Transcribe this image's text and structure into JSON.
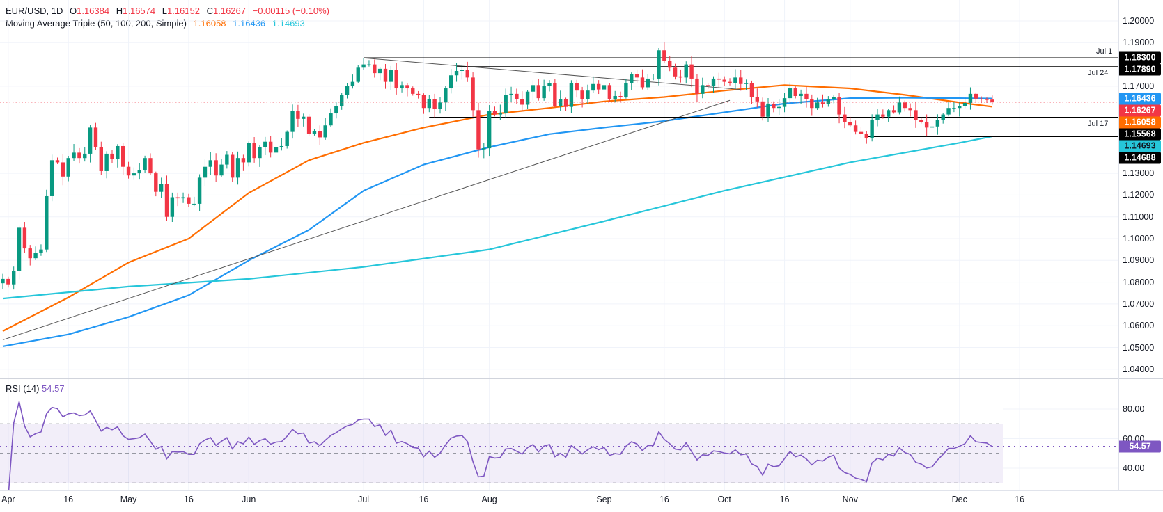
{
  "header": {
    "symbol": "EUR/USD, 1D",
    "open_label": "O",
    "open": "1.16384",
    "high_label": "H",
    "high": "1.16574",
    "low_label": "L",
    "low": "1.16152",
    "close_label": "C",
    "close": "1.16267",
    "change": "−0.00115 (−0.10%)",
    "ma_title": "Moving Average Triple (50, 100, 200, Simple)",
    "ma50": "1.16058",
    "ma100": "1.16436",
    "ma200": "1.14693"
  },
  "rsi_legend": {
    "title": "RSI (14)",
    "value": "54.57"
  },
  "colors": {
    "up": "#089981",
    "down": "#f23645",
    "ma50": "#ff6d00",
    "ma100": "#2196f3",
    "ma200": "#26c6da",
    "rsi": "#7e57c2"
  },
  "chart_data": [
    {
      "type": "candlestick",
      "title": "EUR/USD, 1D",
      "start_date": "2025-03-31",
      "closes": [
        1.0815,
        1.079,
        1.085,
        1.105,
        1.0955,
        1.091,
        1.0935,
        1.095,
        1.1195,
        1.136,
        1.135,
        1.1285,
        1.137,
        1.1395,
        1.137,
        1.139,
        1.151,
        1.142,
        1.131,
        1.139,
        1.1365,
        1.1425,
        1.133,
        1.129,
        1.13,
        1.1315,
        1.137,
        1.13,
        1.1215,
        1.125,
        1.11,
        1.119,
        1.1185,
        1.119,
        1.116,
        1.116,
        1.128,
        1.133,
        1.136,
        1.129,
        1.134,
        1.1385,
        1.128,
        1.137,
        1.135,
        1.144,
        1.137,
        1.142,
        1.1445,
        1.1395,
        1.142,
        1.1425,
        1.149,
        1.1585,
        1.155,
        1.156,
        1.148,
        1.1495,
        1.1465,
        1.152,
        1.1575,
        1.161,
        1.166,
        1.17,
        1.172,
        1.1785,
        1.18,
        1.18,
        1.176,
        1.178,
        1.172,
        1.1775,
        1.169,
        1.1705,
        1.169,
        1.1665,
        1.166,
        1.16,
        1.164,
        1.1595,
        1.1625,
        1.169,
        1.175,
        1.177,
        1.1775,
        1.174,
        1.159,
        1.141,
        1.1415,
        1.1585,
        1.157,
        1.1575,
        1.166,
        1.1665,
        1.164,
        1.1615,
        1.1675,
        1.1705,
        1.1645,
        1.17,
        1.1715,
        1.161,
        1.164,
        1.1605,
        1.1715,
        1.168,
        1.164,
        1.168,
        1.171,
        1.1685,
        1.1705,
        1.164,
        1.1655,
        1.165,
        1.1715,
        1.1755,
        1.174,
        1.1695,
        1.1735,
        1.1735,
        1.1865,
        1.1815,
        1.1785,
        1.1745,
        1.174,
        1.18,
        1.1735,
        1.1665,
        1.1705,
        1.17,
        1.1735,
        1.173,
        1.172,
        1.1715,
        1.174,
        1.171,
        1.1715,
        1.165,
        1.163,
        1.156,
        1.162,
        1.16,
        1.1605,
        1.1645,
        1.169,
        1.1655,
        1.1665,
        1.164,
        1.16,
        1.1625,
        1.162,
        1.164,
        1.165,
        1.157,
        1.1535,
        1.152,
        1.149,
        1.148,
        1.146,
        1.1545,
        1.157,
        1.156,
        1.159,
        1.158,
        1.1625,
        1.16,
        1.159,
        1.1545,
        1.1535,
        1.151,
        1.1515,
        1.1545,
        1.157,
        1.16,
        1.16,
        1.161,
        1.1623,
        1.1665,
        1.1643,
        1.164,
        1.1638,
        1.16267
      ],
      "last_candle": {
        "open": 1.16384,
        "high": 1.16574,
        "low": 1.16152,
        "close": 1.16267
      },
      "moving_averages": [
        {
          "name": "SMA 50",
          "last": 1.16058,
          "points": [
            [
              0,
              1.0575
            ],
            [
              12,
              1.073
            ],
            [
              23,
              1.089
            ],
            [
              34,
              1.1
            ],
            [
              45,
              1.121
            ],
            [
              56,
              1.136
            ],
            [
              66,
              1.144
            ],
            [
              77,
              1.151
            ],
            [
              89,
              1.157
            ],
            [
              100,
              1.16
            ],
            [
              110,
              1.163
            ],
            [
              121,
              1.165
            ],
            [
              132,
              1.168
            ],
            [
              143,
              1.1705
            ],
            [
              155,
              1.169
            ],
            [
              165,
              1.166
            ],
            [
              175,
              1.1625
            ],
            [
              181,
              1.16058
            ]
          ]
        },
        {
          "name": "SMA 100",
          "last": 1.16436,
          "points": [
            [
              0,
              1.0505
            ],
            [
              12,
              1.056
            ],
            [
              23,
              1.064
            ],
            [
              34,
              1.074
            ],
            [
              45,
              1.09
            ],
            [
              56,
              1.104
            ],
            [
              66,
              1.122
            ],
            [
              77,
              1.134
            ],
            [
              89,
              1.142
            ],
            [
              100,
              1.148
            ],
            [
              110,
              1.151
            ],
            [
              121,
              1.154
            ],
            [
              132,
              1.158
            ],
            [
              143,
              1.162
            ],
            [
              155,
              1.1645
            ],
            [
              165,
              1.1647
            ],
            [
              175,
              1.1645
            ],
            [
              181,
              1.16436
            ]
          ]
        },
        {
          "name": "SMA 200",
          "last": 1.14693,
          "points": [
            [
              0,
              1.0725
            ],
            [
              23,
              1.078
            ],
            [
              45,
              1.0815
            ],
            [
              66,
              1.087
            ],
            [
              89,
              1.095
            ],
            [
              110,
              1.108
            ],
            [
              132,
              1.122
            ],
            [
              155,
              1.135
            ],
            [
              175,
              1.144
            ],
            [
              181,
              1.14693
            ]
          ]
        }
      ],
      "horizontal_levels": [
        {
          "label": "Jul 1",
          "value": "1.18300",
          "price": 1.183,
          "from_day": 66
        },
        {
          "label": "Jul 24",
          "value": "1.17890",
          "price": 1.1789,
          "from_day": 83
        },
        {
          "label": "Jul 17",
          "value": "1.15568",
          "price": 1.15568,
          "from_day": 78
        },
        {
          "label": "",
          "value": "1.14688",
          "price": 1.14688,
          "from_day": 158
        }
      ],
      "trend_lines": [
        {
          "name": "rising-trendline",
          "from": [
            0,
            1.0535
          ],
          "to": [
            133,
            1.1635
          ]
        },
        {
          "name": "falling-trendline",
          "from": [
            66,
            1.183
          ],
          "to": [
            135,
            1.1685
          ]
        }
      ],
      "y_ticks": [
        "1.20000",
        "1.19000",
        "1.17000",
        "1.13000",
        "1.12000",
        "1.11000",
        "1.10000",
        "1.09000",
        "1.08000",
        "1.07000",
        "1.06000",
        "1.05000",
        "1.04000"
      ],
      "ylim": [
        1.04,
        1.2
      ]
    },
    {
      "type": "line",
      "title": "RSI (14)",
      "period": 14,
      "last": 54.57,
      "y_ticks": [
        "80.00",
        "60.00",
        "40.00"
      ],
      "bands": [
        30,
        50,
        70
      ],
      "ylim": [
        25,
        82
      ]
    }
  ],
  "time_axis": [
    {
      "label": "Apr",
      "day": 1
    },
    {
      "label": "16",
      "day": 12
    },
    {
      "label": "May",
      "day": 23
    },
    {
      "label": "16",
      "day": 34
    },
    {
      "label": "Jun",
      "day": 45
    },
    {
      "label": "Jul",
      "day": 66
    },
    {
      "label": "16",
      "day": 77
    },
    {
      "label": "Aug",
      "day": 89
    },
    {
      "label": "Sep",
      "day": 110
    },
    {
      "label": "16",
      "day": 121
    },
    {
      "label": "Oct",
      "day": 132
    },
    {
      "label": "16",
      "day": 143
    },
    {
      "label": "Nov",
      "day": 155
    },
    {
      "label": "Dec",
      "day": 175
    },
    {
      "label": "16",
      "day": 186
    }
  ]
}
